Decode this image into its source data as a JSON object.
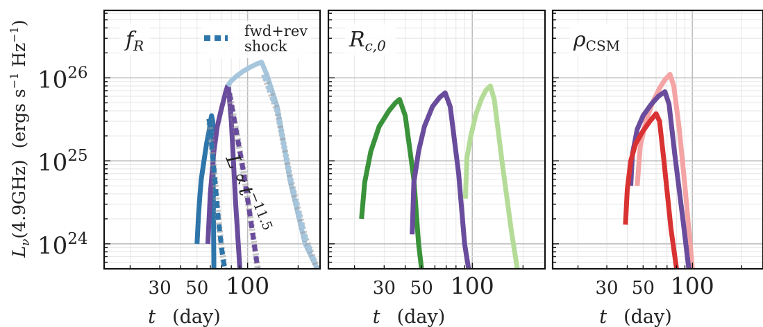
{
  "chart_data": [
    {
      "type": "line",
      "panel_label": "f_R",
      "xlabel": "t (day)",
      "ylabel": "L_ν (4.9GHz) (ergs s⁻¹ Hz⁻¹)",
      "xscale": "log",
      "yscale": "log",
      "xlim": [
        14,
        270
      ],
      "ylim": [
        5e+23,
        6.5e+26
      ],
      "xticks": [
        30,
        50,
        100
      ],
      "yticks": [
        "10^24",
        "10^25",
        "10^26"
      ],
      "legend": {
        "label": "fwd+rev\nshock",
        "position": "top-right"
      },
      "annotation": "L ∝ t^-11.5",
      "series": [
        {
          "color": "#2e75aa",
          "style": "solid",
          "x": [
            50,
            51,
            52,
            53,
            55,
            57,
            59,
            60,
            61,
            62,
            63
          ],
          "y": [
            1e+24,
            2.2e+24,
            3.8e+24,
            6e+24,
            1e+25,
            1.6e+25,
            2.3e+25,
            2.9e+25,
            3.5e+25,
            3e+25,
            5e+23
          ]
        },
        {
          "color": "#6a4c9c",
          "style": "solid",
          "x": [
            58,
            60,
            63,
            66,
            70,
            74,
            76,
            77,
            80,
            85,
            90
          ],
          "y": [
            1e+24,
            4e+24,
            1.3e+25,
            2.6e+25,
            4.3e+25,
            6.7e+25,
            8e+25,
            7.5e+25,
            3e+25,
            3e+24,
            5e+23
          ]
        },
        {
          "color": "#a6c6dd",
          "style": "solid",
          "x": [
            76,
            80,
            86,
            94,
            104,
            114,
            121,
            130,
            150,
            180,
            220,
            260
          ],
          "y": [
            8e+25,
            9.2e+25,
            1.05e+26,
            1.2e+26,
            1.35e+26,
            1.48e+26,
            1.55e+26,
            1.1e+26,
            4.5e+25,
            5.5e+24,
            1e+24,
            5e+23
          ]
        },
        {
          "color": "#2e75aa",
          "style": "dashed",
          "x": [
            59,
            63,
            67,
            70,
            73
          ],
          "y": [
            3.2e+25,
            8e+24,
            2e+24,
            9e+23,
            5e+23
          ]
        },
        {
          "color": "#6a4c9c",
          "style": "dashed",
          "x": [
            78,
            85,
            95,
            105,
            115
          ],
          "y": [
            6.5e+25,
            2.5e+25,
            7e+24,
            1.8e+24,
            5e+23
          ]
        },
        {
          "color": "#a6c6dd",
          "style": "dashed",
          "x": [
            125,
            150,
            180,
            220,
            260
          ],
          "y": [
            1.1e+26,
            4e+25,
            6e+24,
            1.2e+24,
            5e+23
          ]
        }
      ]
    },
    {
      "type": "line",
      "panel_label": "R_c,0",
      "xlabel": "t (day)",
      "xscale": "log",
      "yscale": "log",
      "xlim": [
        14,
        270
      ],
      "ylim": [
        5e+23,
        6.5e+26
      ],
      "xticks": [
        30,
        50,
        100
      ],
      "series": [
        {
          "color": "#3a923a",
          "style": "solid",
          "x": [
            22,
            23,
            25,
            28,
            32,
            35,
            37,
            40,
            45,
            48,
            50
          ],
          "y": [
            2e+24,
            5.5e+24,
            1.3e+25,
            2.6e+25,
            4e+25,
            5e+25,
            5.5e+25,
            3.5e+25,
            6e+24,
            1e+24,
            5e+23
          ]
        },
        {
          "color": "#6a4c9c",
          "style": "solid",
          "x": [
            44,
            45,
            48,
            52,
            58,
            64,
            69,
            74,
            83,
            90,
            95
          ],
          "y": [
            1.3e+24,
            5.5e+24,
            1.3e+25,
            2.6e+25,
            4.5e+25,
            5.8e+25,
            6.6e+25,
            4.5e+25,
            7e+24,
            1e+24,
            5e+23
          ]
        },
        {
          "color": "#b4dc98",
          "style": "solid",
          "x": [
            91,
            93,
            98,
            105,
            113,
            120,
            128,
            135,
            150,
            170,
            185
          ],
          "y": [
            3.5e+24,
            1.1e+25,
            2e+25,
            3.6e+25,
            5.5e+25,
            7e+25,
            8e+25,
            5.5e+25,
            1e+25,
            1.5e+24,
            5e+23
          ]
        }
      ]
    },
    {
      "type": "line",
      "panel_label": "ρ_CSM",
      "xlabel": "t (day)",
      "xscale": "log",
      "yscale": "log",
      "xlim": [
        14,
        270
      ],
      "ylim": [
        5e+23,
        6.5e+26
      ],
      "xticks": [
        30,
        50,
        100
      ],
      "series": [
        {
          "color": "#f4a4a4",
          "style": "solid",
          "x": [
            46,
            48,
            52,
            57,
            63,
            68,
            73,
            77,
            83,
            90,
            100
          ],
          "y": [
            5e+24,
            1.5e+25,
            3e+25,
            5e+25,
            7.5e+25,
            9.5e+25,
            1.1e+26,
            8e+25,
            2.5e+25,
            5e+24,
            5e+23
          ]
        },
        {
          "color": "#6a4c9c",
          "style": "solid",
          "x": [
            42,
            43,
            46,
            50,
            56,
            62,
            68,
            72,
            78,
            88,
            95
          ],
          "y": [
            5e+24,
            1.2e+25,
            2.4e+25,
            3.5e+25,
            4.8e+25,
            6e+25,
            6.8e+25,
            4.8e+25,
            1.2e+25,
            1.8e+24,
            5e+23
          ]
        },
        {
          "color": "#d93232",
          "style": "solid",
          "x": [
            39,
            40,
            42,
            45,
            50,
            55,
            60,
            63,
            67,
            74,
            80
          ],
          "y": [
            1.7e+24,
            4.5e+24,
            1e+25,
            1.6e+25,
            2.3e+25,
            3e+25,
            3.7e+25,
            3e+25,
            1e+25,
            1.5e+24,
            5e+23
          ]
        }
      ]
    }
  ]
}
